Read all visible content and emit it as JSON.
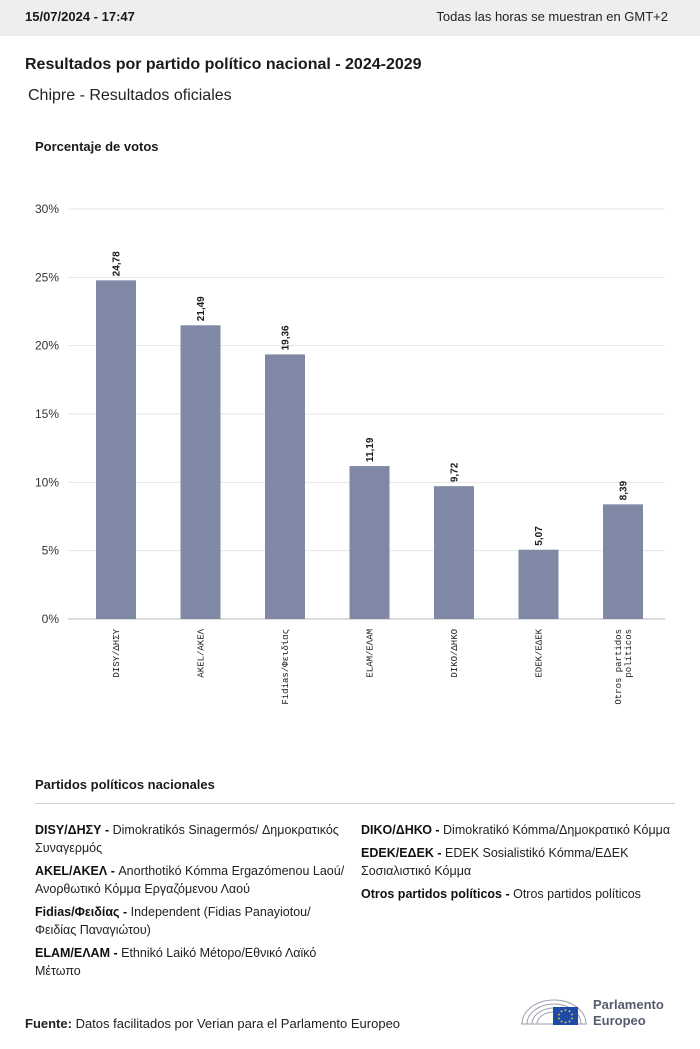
{
  "header": {
    "timestamp": "15/07/2024 - 17:47",
    "timezone_note": "Todas las horas se muestran en GMT+2"
  },
  "title": "Resultados por partido político nacional - 2024-2029",
  "subtitle": "Chipre - Resultados oficiales",
  "chart_data": {
    "type": "bar",
    "ylabel": "Porcentaje de votos",
    "xlabel": "",
    "ylim": [
      0,
      30
    ],
    "yticks": [
      "0%",
      "5%",
      "10%",
      "15%",
      "20%",
      "25%",
      "30%"
    ],
    "bar_color": "#7f89a5",
    "grid": true,
    "categories": [
      [
        "DISY/ΔΗΣΥ"
      ],
      [
        "AKEL/ΑΚΕΛ"
      ],
      [
        "Fidias/Φειδίας"
      ],
      [
        "ELAM/ΕΛΑΜ"
      ],
      [
        "DIKO/ΔΗΚΟ"
      ],
      [
        "EDEK/ΕΔΕΚ"
      ],
      [
        "Otros partidos",
        "políticos"
      ]
    ],
    "values": [
      24.78,
      21.49,
      19.36,
      11.19,
      9.72,
      5.07,
      8.39
    ],
    "value_labels": [
      "24,78",
      "21,49",
      "19,36",
      "11,19",
      "9,72",
      "5,07",
      "8,39"
    ]
  },
  "legend": {
    "title": "Partidos políticos nacionales",
    "left": [
      {
        "code": "DISY/ΔΗΣΥ - ",
        "name": "Dimokratikós Sinagermós/ Δημοκρατικός Συναγερμός"
      },
      {
        "code": "AKEL/ΑΚΕΛ - ",
        "name": "Anorthotikó Kómma Ergazómenou Laoú/Ανορθωτικό Κόμμα Εργαζόμενου Λαού"
      },
      {
        "code": "Fidias/Φειδίας - ",
        "name": "Independent (Fidias Panayiotou/ Φειδίας Παναγιώτου)"
      },
      {
        "code": "ELAM/ΕΛΑΜ - ",
        "name": "Ethnikó Laikó Métopo/Εθνικό Λαϊκό Μέτωπο"
      }
    ],
    "right": [
      {
        "code": "DIKO/ΔΗΚΟ - ",
        "name": "Dimokratikó Kómma/Δημοκρατικό Κόμμα"
      },
      {
        "code": "EDEK/ΕΔΕΚ - ",
        "name": "EDEK Sosialistikó Kómma/ΕΔΕΚ Σοσιαλιστικό Κόμμα"
      },
      {
        "code": "Otros partidos políticos - ",
        "name": "Otros partidos políticos"
      }
    ]
  },
  "footer": {
    "source_label": "Fuente:",
    "source_text": " Datos facilitados por Verian para el Parlamento Europeo",
    "logo_line1": "Parlamento",
    "logo_line2": "Europeo"
  }
}
